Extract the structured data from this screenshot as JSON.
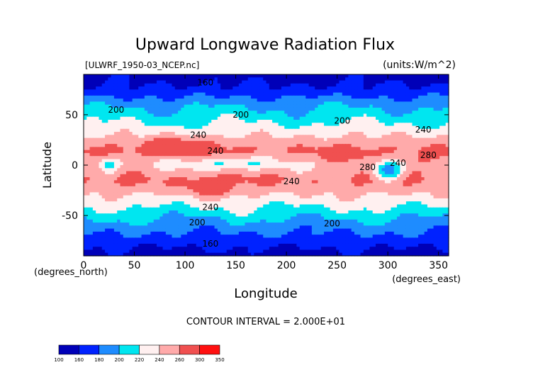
{
  "chart_data": {
    "type": "heatmap",
    "title": "Upward Longwave Radiation Flux",
    "source_label": "[ULWRF_1950-03_NCEP.nc]",
    "units_label": "(units:W/m^2)",
    "xlabel": "Longitude",
    "ylabel": "Latitude",
    "x_unit_label": "(degrees_east)",
    "y_unit_label": "(degrees_north)",
    "xlim": [
      0,
      360
    ],
    "ylim": [
      -90,
      90
    ],
    "x_ticks": [
      0,
      50,
      100,
      150,
      200,
      250,
      300,
      350
    ],
    "y_ticks": [
      50,
      0,
      -50
    ],
    "contour_interval_text": "CONTOUR INTERVAL = 2.000E+01",
    "contour_labels": [
      {
        "text": "160",
        "lon": 120,
        "lat": 82
      },
      {
        "text": "200",
        "lon": 32,
        "lat": 55
      },
      {
        "text": "200",
        "lon": 155,
        "lat": 50
      },
      {
        "text": "200",
        "lon": 255,
        "lat": 44
      },
      {
        "text": "240",
        "lon": 113,
        "lat": 30
      },
      {
        "text": "240",
        "lon": 335,
        "lat": 35
      },
      {
        "text": "240",
        "lon": 130,
        "lat": 14
      },
      {
        "text": "280",
        "lon": 340,
        "lat": 10
      },
      {
        "text": "240",
        "lon": 310,
        "lat": 2
      },
      {
        "text": "280",
        "lon": 280,
        "lat": -2
      },
      {
        "text": "240",
        "lon": 205,
        "lat": -16
      },
      {
        "text": "240",
        "lon": 125,
        "lat": -42
      },
      {
        "text": "200",
        "lon": 112,
        "lat": -57
      },
      {
        "text": "200",
        "lon": 245,
        "lat": -58
      },
      {
        "text": "160",
        "lon": 125,
        "lat": -78
      }
    ],
    "colorbar": {
      "levels": [
        100,
        160,
        180,
        200,
        220,
        240,
        260,
        300,
        350
      ],
      "colors": [
        "#0000b8",
        "#0022ff",
        "#1e8cff",
        "#00e6f0",
        "#fff0f0",
        "#ffaaaa",
        "#f05050",
        "#ff1010"
      ]
    },
    "field_profile": {
      "lat": [
        90,
        75,
        60,
        45,
        30,
        15,
        0,
        -15,
        -30,
        -45,
        -60,
        -75,
        -90
      ],
      "values": [
        150,
        165,
        195,
        215,
        238,
        262,
        242,
        262,
        240,
        215,
        190,
        170,
        150
      ]
    }
  }
}
